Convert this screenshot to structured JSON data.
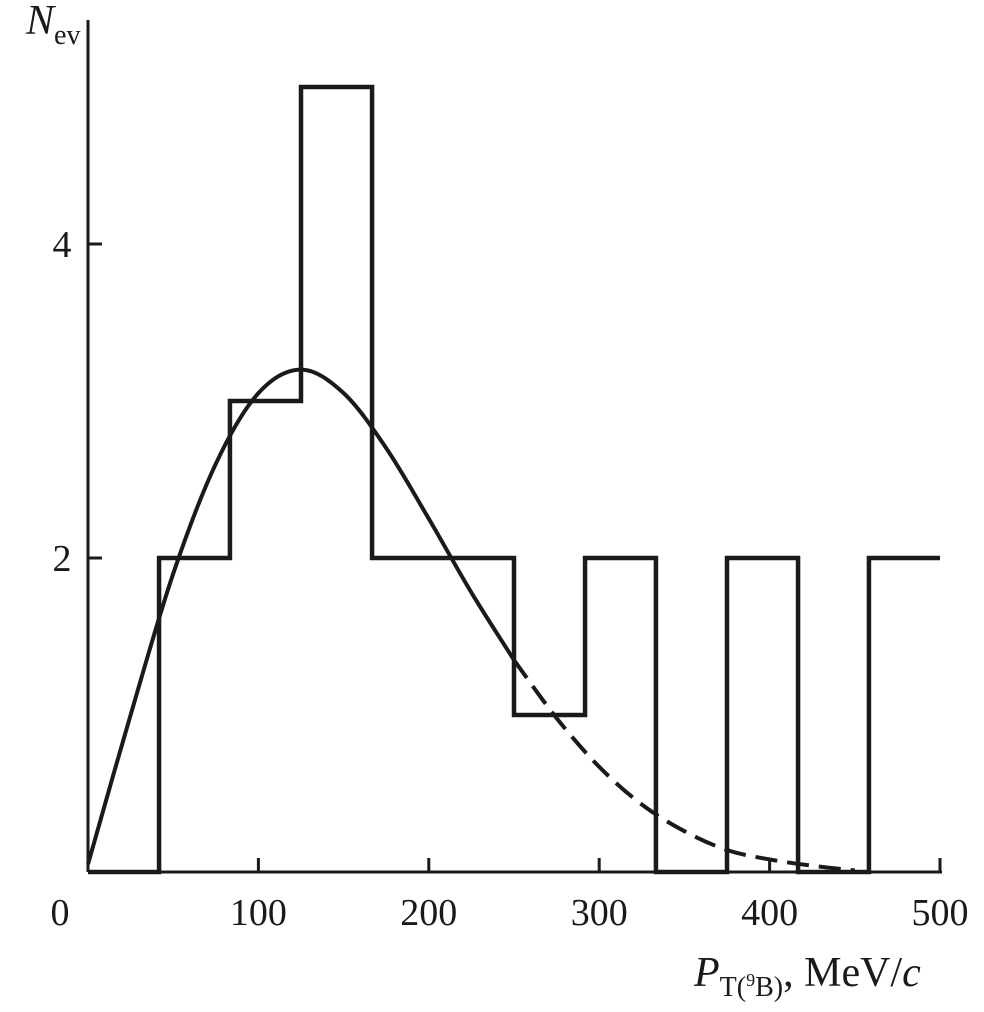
{
  "chart_data": {
    "type": "histogram",
    "x_axis": {
      "min": 0,
      "max": 500,
      "ticks": [
        0,
        100,
        200,
        300,
        400,
        500
      ],
      "label_symbol": "P",
      "label_subscript_T": "T",
      "label_subscript_open": "(",
      "label_subscript_sup": "9",
      "label_subscript_elem": "B",
      "label_subscript_close": ")",
      "label_unit": ", MeV/",
      "label_unit_italic": "c"
    },
    "y_axis": {
      "min": 0,
      "max": 5,
      "ticks": [
        2,
        4
      ],
      "tick_labels": [
        "2",
        "4"
      ],
      "label_symbol": "N",
      "label_subscript": "ev"
    },
    "histogram": {
      "bin_edges": [
        0,
        41.7,
        83.3,
        125,
        166.7,
        208.3,
        250,
        291.7,
        333.3,
        375,
        416.7,
        458.3,
        500
      ],
      "counts": [
        0,
        2,
        3,
        5,
        2,
        2,
        1,
        2,
        0,
        2,
        0,
        2
      ]
    },
    "fit_curve": {
      "x": [
        0,
        25,
        50,
        75,
        100,
        125,
        150,
        175,
        200,
        225,
        250,
        275,
        300,
        325,
        350,
        375,
        400,
        425,
        450
      ],
      "y": [
        0.05,
        1.0,
        1.9,
        2.6,
        3.05,
        3.2,
        3.05,
        2.7,
        2.25,
        1.78,
        1.35,
        0.98,
        0.67,
        0.43,
        0.26,
        0.14,
        0.08,
        0.04,
        0.01
      ],
      "solid_until_x": 250
    }
  }
}
